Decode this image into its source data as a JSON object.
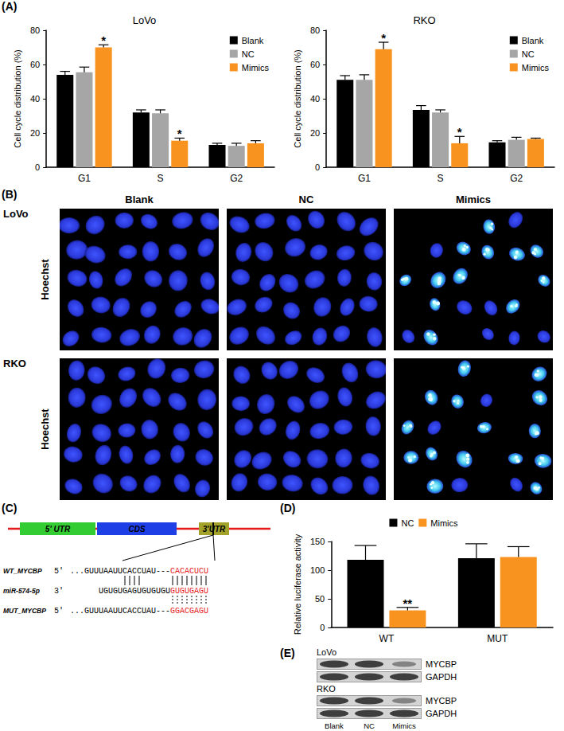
{
  "panel_labels": [
    "(A)",
    "(B)",
    "(C)",
    "(D)",
    "(E)"
  ],
  "chart_data": [
    {
      "type": "bar",
      "title": "LoVo",
      "y_label": "Cell cycle distribution (%)",
      "categories": [
        "G1",
        "S",
        "G2"
      ],
      "series": [
        {
          "name": "Blank",
          "color": "#000000",
          "values": [
            54,
            32,
            13
          ],
          "errors": [
            2,
            1.5,
            1
          ]
        },
        {
          "name": "NC",
          "color": "#a6a6a6",
          "values": [
            55.5,
            31.5,
            12.5
          ],
          "errors": [
            3,
            2,
            1.5
          ]
        },
        {
          "name": "Mimics",
          "color": "#f7931e",
          "values": [
            70,
            15.5,
            14
          ],
          "errors": [
            1.5,
            1.5,
            1.5
          ],
          "significance": [
            "*",
            "*",
            null
          ]
        }
      ],
      "ylim": [
        0,
        80
      ],
      "yticks": [
        0,
        20,
        40,
        60,
        80
      ],
      "grid": false,
      "legend": "top-right"
    },
    {
      "type": "bar",
      "title": "RKO",
      "y_label": "Cell cycle distribution (%)",
      "categories": [
        "G1",
        "S",
        "G2"
      ],
      "series": [
        {
          "name": "Blank",
          "color": "#000000",
          "values": [
            51,
            33.5,
            14.5
          ],
          "errors": [
            2.5,
            2.5,
            1
          ]
        },
        {
          "name": "NC",
          "color": "#a6a6a6",
          "values": [
            51,
            32,
            16
          ],
          "errors": [
            3,
            1.5,
            1.5
          ]
        },
        {
          "name": "Mimics",
          "color": "#f7931e",
          "values": [
            69,
            14,
            16.5
          ],
          "errors": [
            4,
            4,
            0.5
          ],
          "significance": [
            "*",
            "*",
            null
          ]
        }
      ],
      "ylim": [
        0,
        80
      ],
      "yticks": [
        0,
        20,
        40,
        60,
        80
      ],
      "grid": false,
      "legend": "top-right"
    },
    {
      "type": "bar",
      "y_label": "Relative luciferase activity",
      "categories": [
        "WT",
        "MUT"
      ],
      "series": [
        {
          "name": "NC",
          "color": "#000000",
          "values": [
            118,
            121
          ],
          "errors": [
            25,
            25
          ]
        },
        {
          "name": "Mimics",
          "color": "#f7931e",
          "values": [
            30,
            123
          ],
          "errors": [
            5,
            18
          ],
          "significance": [
            "**",
            null
          ]
        }
      ],
      "ylim": [
        0,
        150
      ],
      "yticks": [
        0,
        50,
        100,
        150
      ],
      "grid": false,
      "legend": "top"
    }
  ],
  "hoechst": {
    "columns": [
      "Blank",
      "NC",
      "Mimics"
    ],
    "rows": [
      "LoVo",
      "RKO"
    ],
    "stain": "Hoechst"
  },
  "diagram": {
    "regions": [
      "5' UTR",
      "CDS",
      "3'UTR"
    ],
    "sequences": [
      {
        "name": "WT_MYCBP",
        "end": "5'",
        "seq": "...GUUUAAUUCACCUAU---",
        "highlight": "CACACUCU"
      },
      {
        "name": "miR-574-5p",
        "end": "3'",
        "seq": "UGUGUGAGUGUGUGU",
        "highlight": "GUGUGAGU"
      },
      {
        "name": "MUT_MYCBP",
        "end": "5'",
        "seq": "...GUUUAAUUCACCUAU---",
        "highlight": "GGACGAGU"
      }
    ]
  },
  "western_blot": {
    "cell_lines": [
      "LoVo",
      "RKO"
    ],
    "proteins": [
      "MYCBP",
      "GAPDH"
    ],
    "lanes": [
      "Blank",
      "NC",
      "Mimics"
    ]
  }
}
